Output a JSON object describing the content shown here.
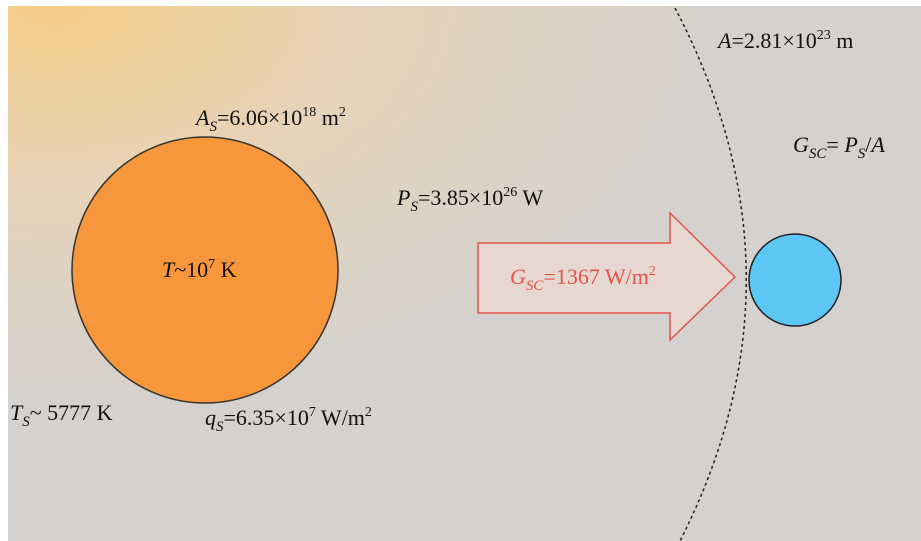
{
  "labels": {
    "area": [
      "A",
      "=2.81×10",
      "23",
      " m"
    ],
    "sun_area": [
      "A",
      "S",
      "=6.06×10",
      "18",
      " m",
      "2"
    ],
    "gsc_formula": [
      "G",
      "SC",
      "= ",
      "P",
      "S",
      "/",
      "A"
    ],
    "power": [
      "P",
      "S",
      "=3.85×10",
      "26",
      " W"
    ],
    "core_temp": [
      "T",
      "~10",
      "7",
      " K"
    ],
    "gsc": [
      "G",
      "SC",
      "=1367 W/m",
      "2"
    ],
    "surface_temp": [
      "T",
      "S",
      "~ 5777 K"
    ],
    "flux": [
      "q",
      "S",
      "=6.35×10",
      "7",
      " W/m",
      "2"
    ]
  }
}
